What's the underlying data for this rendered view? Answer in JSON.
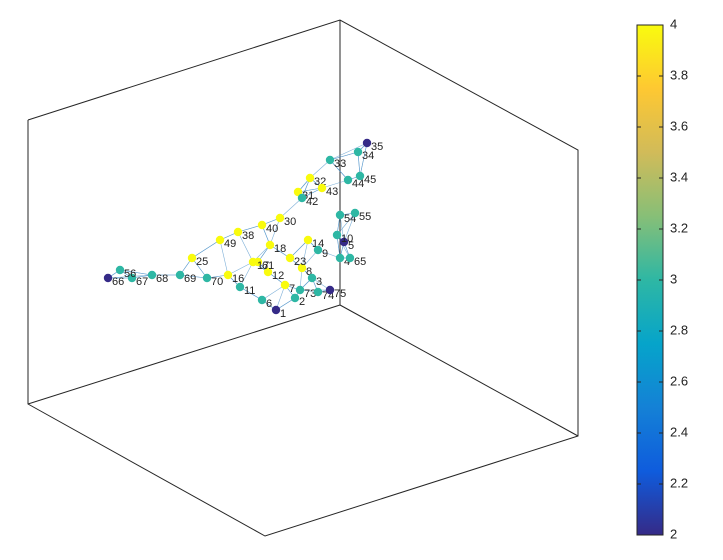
{
  "chart_data": {
    "type": "graph",
    "nodes": [
      {
        "label": "35",
        "value": 2
      },
      {
        "label": "34",
        "value": 3
      },
      {
        "label": "33",
        "value": 3
      },
      {
        "label": "32",
        "value": 4
      },
      {
        "label": "44",
        "value": 3
      },
      {
        "label": "45",
        "value": 3
      },
      {
        "label": "43",
        "value": 4
      },
      {
        "label": "31",
        "value": 4
      },
      {
        "label": "42",
        "value": 3
      },
      {
        "label": "54",
        "value": 3
      },
      {
        "label": "55",
        "value": 3
      },
      {
        "label": "5",
        "value": 2
      },
      {
        "label": "10",
        "value": 3
      },
      {
        "label": "14",
        "value": 4
      },
      {
        "label": "9",
        "value": 3
      },
      {
        "label": "18",
        "value": 4
      },
      {
        "label": "4",
        "value": 3
      },
      {
        "label": "65",
        "value": 3
      },
      {
        "label": "8",
        "value": 4
      },
      {
        "label": "3",
        "value": 3
      },
      {
        "label": "12",
        "value": 4
      },
      {
        "label": "16",
        "value": 4
      },
      {
        "label": "11",
        "value": 3
      },
      {
        "label": "7",
        "value": 4
      },
      {
        "label": "73",
        "value": 3
      },
      {
        "label": "74",
        "value": 3
      },
      {
        "label": "75",
        "value": 2
      },
      {
        "label": "2",
        "value": 3
      },
      {
        "label": "6",
        "value": 3
      },
      {
        "label": "1",
        "value": 2
      },
      {
        "label": "69",
        "value": 3
      },
      {
        "label": "70",
        "value": 3
      },
      {
        "label": "68",
        "value": 3
      },
      {
        "label": "67",
        "value": 3
      },
      {
        "label": "66",
        "value": 2
      },
      {
        "label": "56",
        "value": 3
      },
      {
        "label": "23",
        "value": 4
      },
      {
        "label": "30",
        "value": 4
      },
      {
        "label": "40",
        "value": 4
      },
      {
        "label": "49",
        "value": 4
      },
      {
        "label": "25",
        "value": 4
      },
      {
        "label": "38",
        "value": 4
      },
      {
        "label": "61",
        "value": 4
      },
      {
        "label": "17",
        "value": 4
      }
    ],
    "colormap": [
      "#352a87",
      "#0f5cdd",
      "#1481d6",
      "#06a4ca",
      "#2eb7a4",
      "#87bf77",
      "#d1bb59",
      "#fec832",
      "#f9fb0e"
    ],
    "colorbar": {
      "clim": [
        2,
        4
      ],
      "ticks": [
        2,
        2.2,
        2.4,
        2.6,
        2.8,
        3,
        3.2,
        3.4,
        3.6,
        3.8,
        4
      ]
    }
  }
}
